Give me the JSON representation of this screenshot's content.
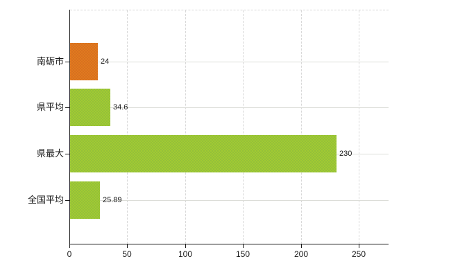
{
  "chart_data": {
    "type": "bar",
    "orientation": "horizontal",
    "title": "",
    "categories": [
      "南砺市",
      "県平均",
      "県最大",
      "全国平均"
    ],
    "values": [
      24,
      34.6,
      230,
      25.89
    ],
    "value_labels": [
      "24",
      "34.6",
      "230",
      "25.89"
    ],
    "bar_colors": [
      "#e07b1e",
      "#a2ca32",
      "#a2ca32",
      "#a2ca32"
    ],
    "bar_dither_colors": [
      "#d86f20",
      "#93c03a",
      "#93c03a",
      "#93c03a"
    ],
    "x_ticks": [
      0,
      50,
      100,
      150,
      200,
      250
    ],
    "x_tick_labels": [
      "0",
      "50",
      "100",
      "150",
      "200",
      "250"
    ],
    "xlim": [
      0,
      275
    ],
    "grid": true,
    "legend_position": "none"
  },
  "colors": {
    "axis": "#1a1a1a",
    "vertical_gridline": "#d8d8d8",
    "horizontal_gridline": "#dcddd8",
    "background": "#ffffff",
    "text": "#1a1a1a"
  }
}
